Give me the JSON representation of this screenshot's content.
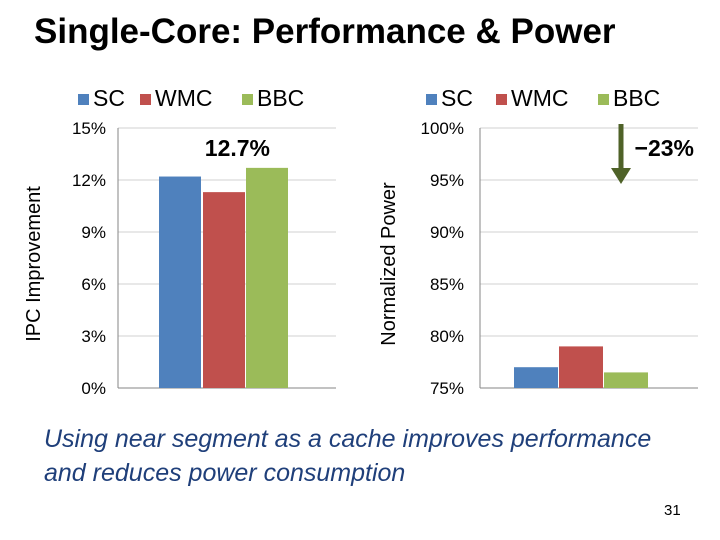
{
  "slide": {
    "title": "Single-Core: Performance & Power",
    "caption": "Using near segment as a cache improves performance and reduces power consumption",
    "page_number": "31"
  },
  "colors": {
    "SC": "#4f81bd",
    "WMC": "#c0504d",
    "BBC": "#9bbb59",
    "arrow": "#4f6228",
    "gridline": "#d0d0d0",
    "axis": "#868686"
  },
  "chart_data": [
    {
      "type": "bar",
      "ylabel": "IPC Improvement",
      "ylim": [
        0,
        15
      ],
      "yticks": [
        0,
        3,
        6,
        9,
        12,
        15
      ],
      "ytick_labels": [
        "0%",
        "3%",
        "6%",
        "9%",
        "12%",
        "15%"
      ],
      "grid": true,
      "legend_position": "top",
      "series": [
        {
          "name": "SC",
          "values": [
            12.2
          ]
        },
        {
          "name": "WMC",
          "values": [
            11.3
          ]
        },
        {
          "name": "BBC",
          "values": [
            12.7
          ]
        }
      ],
      "annotations": [
        {
          "text": "12.7%",
          "series": "BBC"
        }
      ]
    },
    {
      "type": "bar",
      "ylabel": "Normalized Power",
      "ylim": [
        75,
        100
      ],
      "yticks": [
        75,
        80,
        85,
        90,
        95,
        100
      ],
      "ytick_labels": [
        "75%",
        "80%",
        "85%",
        "90%",
        "95%",
        "100%"
      ],
      "grid": true,
      "legend_position": "top",
      "series": [
        {
          "name": "SC",
          "values": [
            77
          ]
        },
        {
          "name": "WMC",
          "values": [
            79
          ]
        },
        {
          "name": "BBC",
          "values": [
            76.5
          ]
        }
      ],
      "annotations": [
        {
          "text": "−23%",
          "series": "BBC",
          "arrow": "down"
        }
      ]
    }
  ]
}
